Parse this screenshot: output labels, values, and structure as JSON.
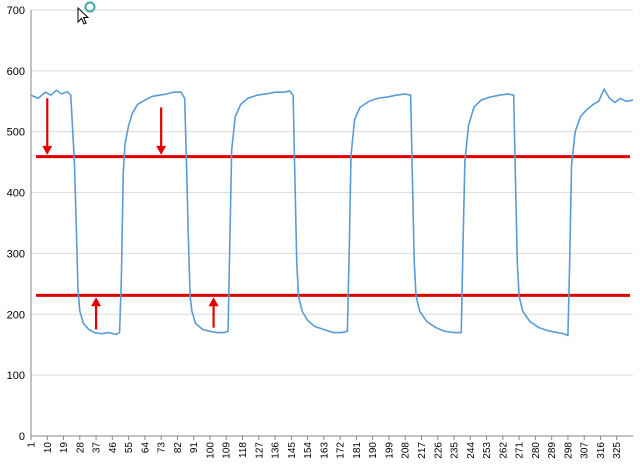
{
  "chart_data": {
    "type": "line",
    "title": "",
    "xlabel": "",
    "ylabel": "",
    "ylim": [
      0,
      700
    ],
    "yticks": [
      0,
      100,
      200,
      300,
      400,
      500,
      600,
      700
    ],
    "xlim": [
      1,
      334
    ],
    "xtick_labels": [
      "1",
      "10",
      "19",
      "28",
      "37",
      "46",
      "55",
      "64",
      "73",
      "82",
      "91",
      "100",
      "109",
      "118",
      "127",
      "136",
      "145",
      "154",
      "163",
      "172",
      "181",
      "190",
      "199",
      "208",
      "217",
      "226",
      "235",
      "244",
      "253",
      "262",
      "271",
      "280",
      "289",
      "298",
      "307",
      "316",
      "325"
    ],
    "grid": "horizontal",
    "legend": "none",
    "series": [
      {
        "color": "#5b9bd5",
        "points": [
          [
            1,
            560
          ],
          [
            5,
            555
          ],
          [
            9,
            565
          ],
          [
            12,
            560
          ],
          [
            15,
            568
          ],
          [
            18,
            562
          ],
          [
            21,
            566
          ],
          [
            23,
            560
          ],
          [
            25,
            450
          ],
          [
            26,
            350
          ],
          [
            27,
            240
          ],
          [
            28,
            205
          ],
          [
            30,
            185
          ],
          [
            33,
            175
          ],
          [
            36,
            170
          ],
          [
            40,
            168
          ],
          [
            44,
            170
          ],
          [
            48,
            167
          ],
          [
            50,
            170
          ],
          [
            51,
            260
          ],
          [
            52,
            430
          ],
          [
            53,
            480
          ],
          [
            55,
            510
          ],
          [
            57,
            530
          ],
          [
            60,
            545
          ],
          [
            64,
            552
          ],
          [
            68,
            558
          ],
          [
            72,
            560
          ],
          [
            76,
            562
          ],
          [
            80,
            565
          ],
          [
            84,
            565
          ],
          [
            86,
            555
          ],
          [
            87,
            450
          ],
          [
            88,
            330
          ],
          [
            89,
            230
          ],
          [
            90,
            205
          ],
          [
            92,
            185
          ],
          [
            96,
            175
          ],
          [
            100,
            172
          ],
          [
            104,
            170
          ],
          [
            108,
            170
          ],
          [
            110,
            172
          ],
          [
            111,
            320
          ],
          [
            112,
            470
          ],
          [
            114,
            525
          ],
          [
            117,
            545
          ],
          [
            121,
            555
          ],
          [
            126,
            560
          ],
          [
            131,
            562
          ],
          [
            136,
            565
          ],
          [
            141,
            565
          ],
          [
            144,
            567
          ],
          [
            146,
            560
          ],
          [
            147,
            420
          ],
          [
            148,
            285
          ],
          [
            149,
            230
          ],
          [
            151,
            205
          ],
          [
            154,
            190
          ],
          [
            158,
            180
          ],
          [
            163,
            175
          ],
          [
            168,
            170
          ],
          [
            173,
            170
          ],
          [
            176,
            172
          ],
          [
            177,
            300
          ],
          [
            178,
            460
          ],
          [
            180,
            520
          ],
          [
            183,
            540
          ],
          [
            188,
            550
          ],
          [
            193,
            555
          ],
          [
            198,
            557
          ],
          [
            203,
            560
          ],
          [
            208,
            562
          ],
          [
            211,
            560
          ],
          [
            212,
            420
          ],
          [
            213,
            285
          ],
          [
            214,
            230
          ],
          [
            216,
            205
          ],
          [
            220,
            188
          ],
          [
            225,
            178
          ],
          [
            230,
            172
          ],
          [
            235,
            170
          ],
          [
            239,
            170
          ],
          [
            240,
            320
          ],
          [
            241,
            450
          ],
          [
            243,
            510
          ],
          [
            246,
            540
          ],
          [
            250,
            552
          ],
          [
            255,
            557
          ],
          [
            260,
            560
          ],
          [
            265,
            562
          ],
          [
            268,
            560
          ],
          [
            269,
            420
          ],
          [
            270,
            285
          ],
          [
            271,
            230
          ],
          [
            273,
            205
          ],
          [
            277,
            188
          ],
          [
            282,
            178
          ],
          [
            287,
            173
          ],
          [
            292,
            170
          ],
          [
            296,
            168
          ],
          [
            298,
            165
          ],
          [
            299,
            290
          ],
          [
            300,
            445
          ],
          [
            302,
            500
          ],
          [
            305,
            525
          ],
          [
            308,
            535
          ],
          [
            312,
            545
          ],
          [
            315,
            550
          ],
          [
            318,
            570
          ],
          [
            321,
            555
          ],
          [
            324,
            548
          ],
          [
            327,
            555
          ],
          [
            330,
            550
          ],
          [
            334,
            552
          ]
        ]
      }
    ],
    "reference_lines": [
      {
        "y": 459,
        "color": "#e00000"
      },
      {
        "y": 231,
        "color": "#e00000"
      }
    ],
    "annotations": [
      {
        "type": "arrow-down",
        "x": 10,
        "from": 555,
        "to": 462
      },
      {
        "type": "arrow-down",
        "x": 73,
        "from": 540,
        "to": 462
      },
      {
        "type": "arrow-up",
        "x": 37,
        "from": 175,
        "to": 228
      },
      {
        "type": "arrow-up",
        "x": 102,
        "from": 178,
        "to": 228
      }
    ]
  },
  "overlay": {
    "cursor_icon": "mouse-pointer-icon",
    "busy_icon": "busy-ring-icon"
  }
}
